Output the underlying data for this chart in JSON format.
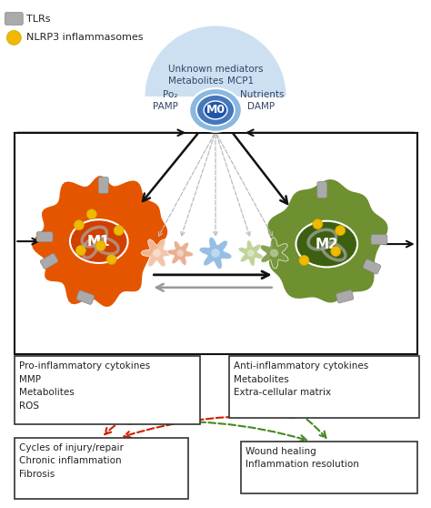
{
  "bg_color": "#ffffff",
  "tlr_color": "#aaaaaa",
  "nlrp3_color": "#f0b800",
  "m0_dome_color": "#c8ddf0",
  "m0_cell_outer_color": "#8ab8e0",
  "m0_cell_inner_color": "#4477bb",
  "m0_nucleus_color": "#2255aa",
  "m0_label": "M0",
  "m1_body_color": "#e55500",
  "m1_blob_color": "#f07030",
  "m1_nucleus_color": "#d04000",
  "m1_label": "M1",
  "m2_body_color": "#6e9030",
  "m2_blob_color": "#8aaa40",
  "m2_nucleus_color": "#3d6010",
  "m2_label": "M2",
  "gray_organelle_color": "#aaaaaa",
  "trans_colors": [
    "#f0c0a0",
    "#e8a888",
    "#8ab8e0",
    "#b8d090",
    "#7a9840"
  ],
  "m0_text_top": "Unknown mediators",
  "m0_text_mid_left": "Metabolites",
  "m0_text_mid_right": "MCP1",
  "m0_text_lo_left1": "Po₂",
  "m0_text_lo_left2": "PAMP",
  "m0_text_lo_right1": "Nutrients",
  "m0_text_lo_right2": "DAMP",
  "m1_box_lines": [
    "Pro-inflammatory cytokines",
    "MMP",
    "Metabolites",
    "ROS"
  ],
  "m2_box_lines": [
    "Anti-inflammatory cytokines",
    "Metabolites",
    "Extra-cellular matrix"
  ],
  "bl_lines": [
    "Cycles of injury/repair",
    "Chronic inflammation",
    "Fibrosis"
  ],
  "br_lines": [
    "Wound healing",
    "Inflammation resolution"
  ],
  "arrow_black": "#111111",
  "arrow_gray": "#999999",
  "arrow_red": "#cc2200",
  "arrow_green": "#448822",
  "box_edge": "#333333",
  "text_color": "#222222",
  "figsize": [
    4.74,
    5.58
  ],
  "dpi": 100
}
